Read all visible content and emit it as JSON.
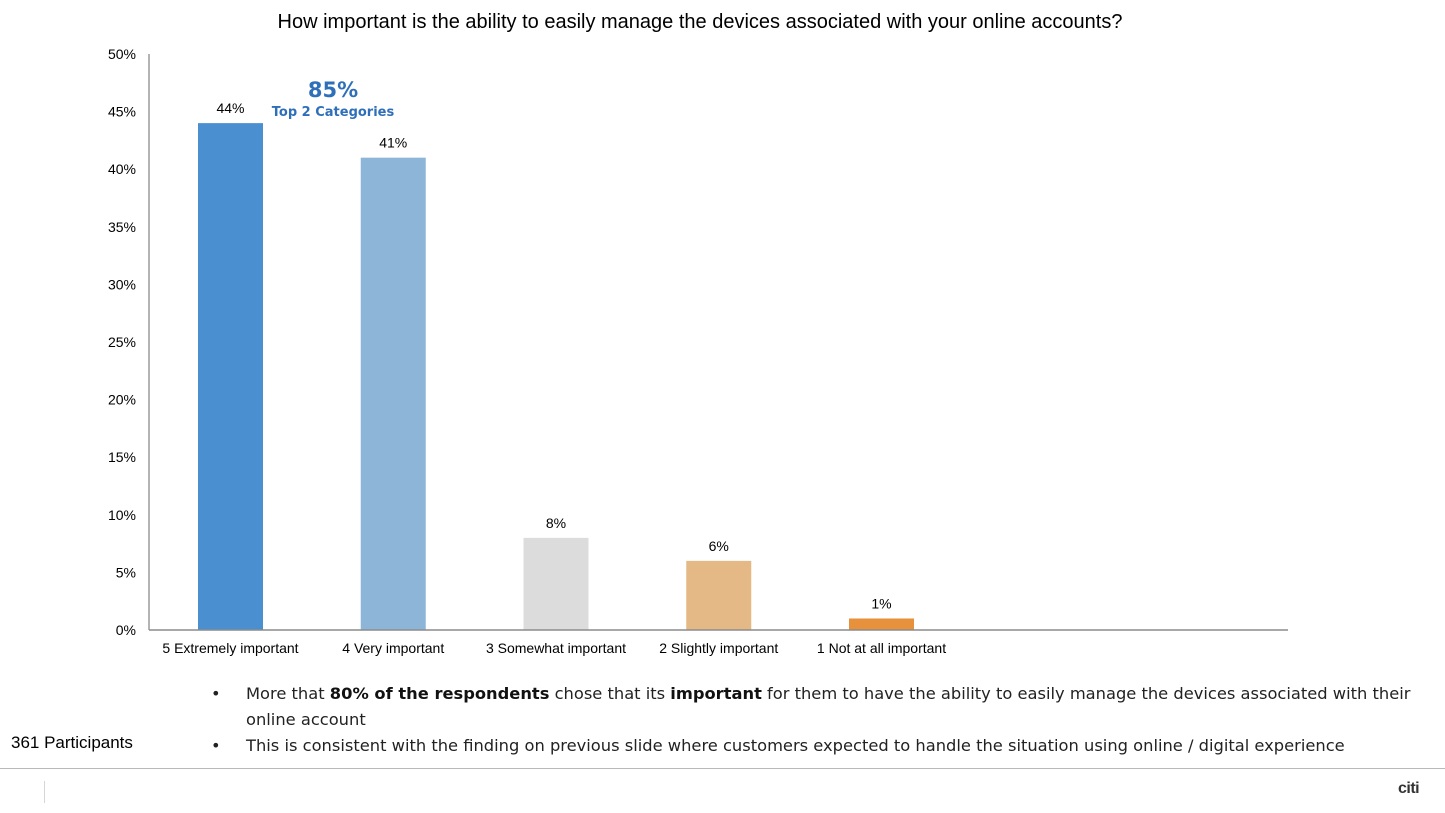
{
  "chart_data": {
    "type": "bar",
    "title": "How important is the ability to easily manage the devices associated with your online accounts?",
    "xlabel": "",
    "ylabel": "",
    "ylim": [
      0,
      50
    ],
    "yticks": [
      0,
      5,
      10,
      15,
      20,
      25,
      30,
      35,
      40,
      45,
      50
    ],
    "ytick_labels": [
      "0%",
      "5%",
      "10%",
      "15%",
      "20%",
      "25%",
      "30%",
      "35%",
      "40%",
      "45%",
      "50%"
    ],
    "grid": false,
    "categories": [
      "5 Extremely important",
      "4 Very important",
      "3 Somewhat important",
      "2 Slightly important",
      "1 Not at all important"
    ],
    "values": [
      44,
      41,
      8,
      6,
      1
    ],
    "data_labels": [
      "44%",
      "41%",
      "8%",
      "6%",
      "1%"
    ],
    "colors": [
      "#4a90d0",
      "#8db5d8",
      "#dcdcdc",
      "#e5b985",
      "#e8913d"
    ],
    "axis_color": "#8c8c8c",
    "annotation": {
      "value": "85%",
      "label": "Top 2 Categories",
      "color": "#2f6fba"
    }
  },
  "notes": [
    {
      "bullet": "•",
      "parts": [
        {
          "text": "More that ",
          "bold": false
        },
        {
          "text": "80% of the respondents",
          "bold": true
        },
        {
          "text": " chose that its ",
          "bold": false
        },
        {
          "text": "important",
          "bold": true
        },
        {
          "text": " for them to have the ability to easily manage the devices associated with their online account",
          "bold": false
        }
      ]
    },
    {
      "bullet": "•",
      "parts": [
        {
          "text": "This is consistent with the finding on previous slide where customers expected to handle the situation using online / digital experience",
          "bold": false
        }
      ]
    }
  ],
  "participants": "361 Participants",
  "logo": "citi"
}
